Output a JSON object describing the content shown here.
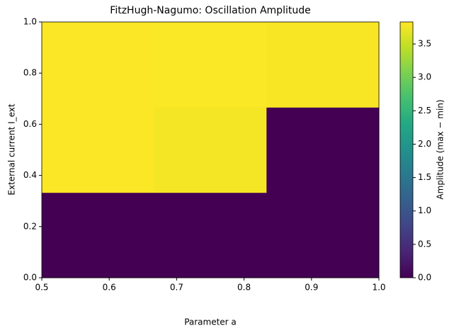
{
  "chart_data": {
    "type": "heatmap",
    "title": "FitzHugh-Nagumo: Oscillation Amplitude",
    "xlabel": "Parameter a",
    "ylabel": "External current I_ext",
    "colorbar_label": "Amplitude (max − min)",
    "colormap": "viridis",
    "xbins": [
      0.5,
      0.6667,
      0.8333,
      1.0
    ],
    "ybins": [
      0.0,
      0.3333,
      0.6667,
      1.0
    ],
    "values": [
      [
        0,
        0,
        0
      ],
      [
        3.82,
        3.78,
        0
      ],
      [
        3.82,
        3.81,
        3.8
      ]
    ],
    "xlim": [
      0.5,
      1.0
    ],
    "xticks": [
      0.5,
      0.6,
      0.7,
      0.8,
      0.9,
      {
        "value": 1,
        "label": "1.0"
      }
    ],
    "ylim": [
      0,
      1
    ],
    "yticks": [
      {
        "value": 0,
        "label": "0.0"
      },
      0.2,
      0.4,
      0.6,
      0.8,
      {
        "value": 1,
        "label": "1.0"
      }
    ],
    "clim": [
      0,
      3.83
    ],
    "cticks": [
      {
        "value": 0,
        "label": "0.0"
      },
      0.5,
      {
        "value": 1,
        "label": "1.0"
      },
      1.5,
      {
        "value": 2,
        "label": "2.0"
      },
      2.5,
      {
        "value": 3,
        "label": "3.0"
      },
      3.5
    ]
  }
}
